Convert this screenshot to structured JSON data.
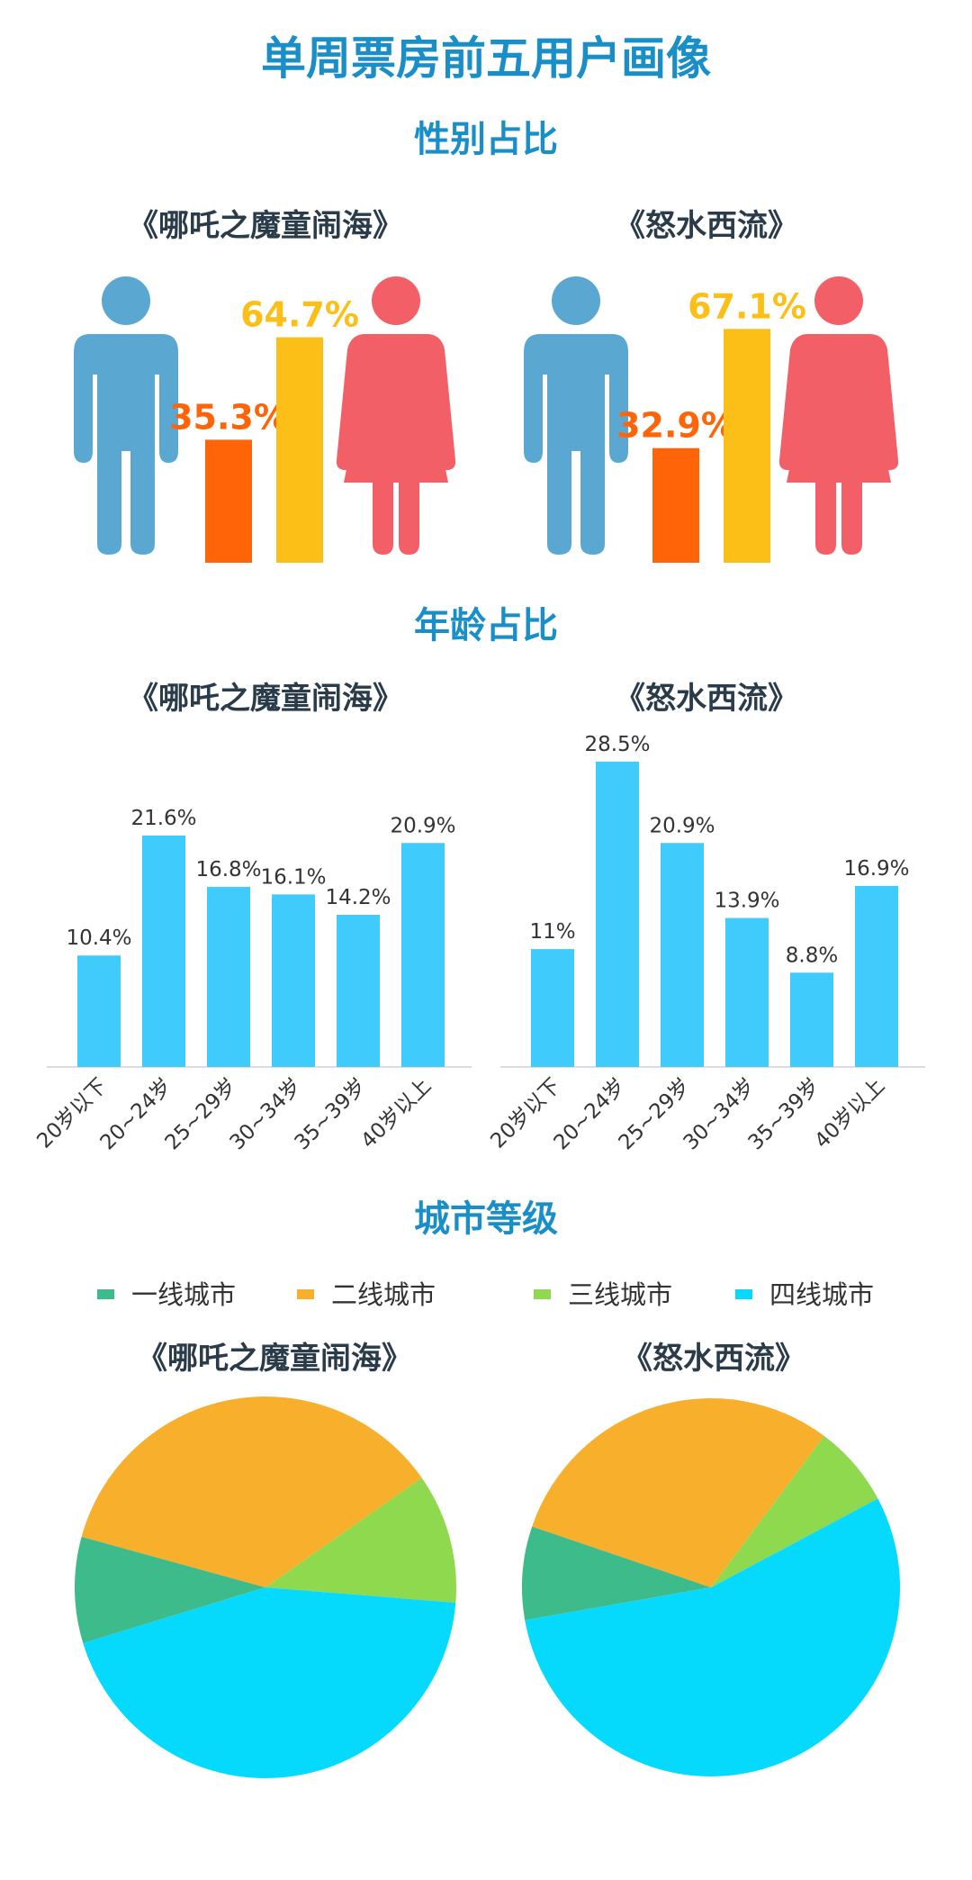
{
  "page": {
    "title": "单周票房前五用户画像",
    "movies": [
      "《哪吒之魔童闹海》",
      "《怒水西流》"
    ]
  },
  "colors": {
    "title_blue": "#1a8fc7",
    "movie_title": "#2a3b4a",
    "male": "#5aa8d2",
    "female": "#f25f66",
    "male_bar": "#ff6508",
    "female_bar": "#fbbf17",
    "age_bar": "#3fcbfb",
    "tier1": "#3dbb8a",
    "tier2": "#f8b02c",
    "tier3": "#8fd94f",
    "tier4": "#05dafd"
  },
  "chart_data": [
    {
      "type": "bar",
      "section": "性别占比",
      "title": "《哪吒之魔童闹海》",
      "categories": [
        "男",
        "女"
      ],
      "values": [
        35.3,
        64.7
      ],
      "labels": [
        "35.3%",
        "64.7%"
      ],
      "unit": "%"
    },
    {
      "type": "bar",
      "section": "性别占比",
      "title": "《怒水西流》",
      "categories": [
        "男",
        "女"
      ],
      "values": [
        32.9,
        67.1
      ],
      "labels": [
        "32.9%",
        "67.1%"
      ],
      "unit": "%"
    },
    {
      "type": "bar",
      "section": "年龄占比",
      "title": "《哪吒之魔童闹海》",
      "categories": [
        "20岁以下",
        "20~24岁",
        "25~29岁",
        "30~34岁",
        "35~39岁",
        "40岁以上"
      ],
      "values": [
        10.4,
        21.6,
        16.8,
        16.1,
        14.2,
        20.9
      ],
      "labels": [
        "10.4%",
        "21.6%",
        "16.8%",
        "16.1%",
        "14.2%",
        "20.9%"
      ],
      "unit": "%"
    },
    {
      "type": "bar",
      "section": "年龄占比",
      "title": "《怒水西流》",
      "categories": [
        "20岁以下",
        "20~24岁",
        "25~29岁",
        "30~34岁",
        "35~39岁",
        "40岁以上"
      ],
      "values": [
        11,
        28.5,
        20.9,
        13.9,
        8.8,
        16.9
      ],
      "labels": [
        "11%",
        "28.5%",
        "20.9%",
        "13.9%",
        "8.8%",
        "16.9%"
      ],
      "unit": "%"
    },
    {
      "type": "pie",
      "section": "城市等级",
      "title": "《哪吒之魔童闹海》",
      "legend": [
        "一线城市",
        "二线城市",
        "三线城市",
        "四线城市"
      ],
      "values": [
        9,
        36,
        11,
        44
      ]
    },
    {
      "type": "pie",
      "section": "城市等级",
      "title": "《怒水西流》",
      "legend": [
        "一线城市",
        "二线城市",
        "三线城市",
        "四线城市"
      ],
      "values": [
        8,
        30,
        7,
        55
      ]
    }
  ]
}
